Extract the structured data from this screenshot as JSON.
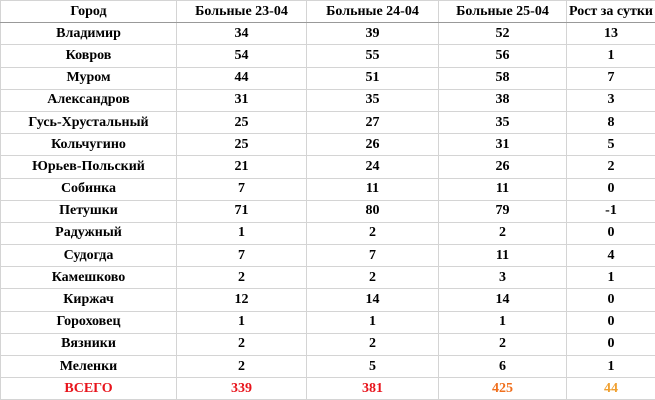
{
  "table": {
    "header": [
      "Город",
      "Больные 23-04",
      "Больные 24-04",
      "Больные 25-04",
      "Рост за сутки"
    ],
    "rows": [
      [
        "Владимир",
        34,
        39,
        52,
        13
      ],
      [
        "Ковров",
        54,
        55,
        56,
        1
      ],
      [
        "Муром",
        44,
        51,
        58,
        7
      ],
      [
        "Александров",
        31,
        35,
        38,
        3
      ],
      [
        "Гусь-Хрустальный",
        25,
        27,
        35,
        8
      ],
      [
        "Кольчугино",
        25,
        26,
        31,
        5
      ],
      [
        "Юрьев-Польский",
        21,
        24,
        26,
        2
      ],
      [
        "Собинка",
        7,
        11,
        11,
        0
      ],
      [
        "Петушки",
        71,
        80,
        79,
        -1
      ],
      [
        "Радужный",
        1,
        2,
        2,
        0
      ],
      [
        "Судогда",
        7,
        7,
        11,
        4
      ],
      [
        "Камешково",
        2,
        2,
        3,
        1
      ],
      [
        "Киржач",
        12,
        14,
        14,
        0
      ],
      [
        "Гороховец",
        1,
        1,
        1,
        0
      ],
      [
        "Вязники",
        2,
        2,
        2,
        0
      ],
      [
        "Меленки",
        2,
        5,
        6,
        1
      ]
    ],
    "total": {
      "cells": [
        "ВСЕГО",
        339,
        381,
        425,
        44
      ],
      "colors": [
        "#e8141c",
        "#e8141c",
        "#e8141c",
        "#f0701e",
        "#f0a030"
      ]
    }
  }
}
